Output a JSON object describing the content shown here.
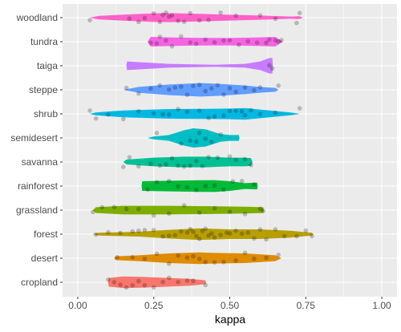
{
  "chart_data": {
    "type": "violin",
    "title": "",
    "xlabel": "kappa",
    "ylabel": "",
    "xlim": [
      -0.05,
      1.05
    ],
    "x_ticks": [
      0.0,
      0.25,
      0.5,
      0.75,
      1.0
    ],
    "x_tick_labels": [
      "0.00",
      "0.25",
      "0.50",
      "0.75",
      "1.00"
    ],
    "grid": true,
    "legend": "none",
    "panel_background": "#EBEBEB",
    "point_color": "rgba(0,0,0,0.22)",
    "categories": [
      "woodland",
      "tundra",
      "taiga",
      "steppe",
      "shrub",
      "semidesert",
      "savanna",
      "rainforest",
      "grassland",
      "forest",
      "desert",
      "cropland"
    ],
    "series": [
      {
        "category": "woodland",
        "color": "#FF61C9",
        "profile": [
          [
            0.04,
            0.0
          ],
          [
            0.07,
            0.18
          ],
          [
            0.15,
            0.32
          ],
          [
            0.25,
            0.45
          ],
          [
            0.3,
            0.47
          ],
          [
            0.4,
            0.4
          ],
          [
            0.5,
            0.3
          ],
          [
            0.6,
            0.22
          ],
          [
            0.7,
            0.12
          ],
          [
            0.73,
            0.15
          ],
          [
            0.74,
            0.0
          ]
        ],
        "points": [
          0.04,
          0.17,
          0.2,
          0.22,
          0.25,
          0.27,
          0.28,
          0.29,
          0.3,
          0.31,
          0.33,
          0.35,
          0.37,
          0.4,
          0.43,
          0.47,
          0.52,
          0.6,
          0.65,
          0.72,
          0.73
        ]
      },
      {
        "category": "tundra",
        "color": "#F564E3",
        "profile": [
          [
            0.23,
            0.0
          ],
          [
            0.24,
            0.5
          ],
          [
            0.3,
            0.45
          ],
          [
            0.4,
            0.4
          ],
          [
            0.5,
            0.38
          ],
          [
            0.6,
            0.45
          ],
          [
            0.65,
            0.5
          ],
          [
            0.675,
            0.0
          ]
        ],
        "points": [
          0.24,
          0.26,
          0.27,
          0.29,
          0.31,
          0.34,
          0.37,
          0.39,
          0.42,
          0.45,
          0.48,
          0.5,
          0.53,
          0.56,
          0.59,
          0.62,
          0.63,
          0.65,
          0.66,
          0.67
        ]
      },
      {
        "category": "taiga",
        "color": "#C77CFF",
        "profile": [
          [
            0.16,
            0.0
          ],
          [
            0.162,
            0.45
          ],
          [
            0.3,
            0.2
          ],
          [
            0.45,
            0.1
          ],
          [
            0.55,
            0.2
          ],
          [
            0.6,
            0.45
          ],
          [
            0.63,
            0.8
          ],
          [
            0.64,
            0.8
          ],
          [
            0.642,
            0.0
          ]
        ],
        "points": [
          0.63,
          0.64
        ]
      },
      {
        "category": "steppe",
        "color": "#619CFF",
        "profile": [
          [
            0.15,
            0.0
          ],
          [
            0.2,
            0.3
          ],
          [
            0.3,
            0.55
          ],
          [
            0.4,
            0.7
          ],
          [
            0.45,
            0.65
          ],
          [
            0.5,
            0.55
          ],
          [
            0.55,
            0.45
          ],
          [
            0.6,
            0.3
          ],
          [
            0.65,
            0.2
          ],
          [
            0.66,
            0.0
          ]
        ],
        "points": [
          0.16,
          0.2,
          0.24,
          0.27,
          0.3,
          0.32,
          0.34,
          0.36,
          0.38,
          0.4,
          0.42,
          0.44,
          0.46,
          0.48,
          0.5,
          0.52,
          0.55,
          0.58,
          0.6,
          0.66
        ]
      },
      {
        "category": "shrub",
        "color": "#00B9E3",
        "profile": [
          [
            0.04,
            0.0
          ],
          [
            0.06,
            0.15
          ],
          [
            0.15,
            0.35
          ],
          [
            0.3,
            0.5
          ],
          [
            0.4,
            0.52
          ],
          [
            0.5,
            0.55
          ],
          [
            0.55,
            0.6
          ],
          [
            0.6,
            0.45
          ],
          [
            0.7,
            0.15
          ],
          [
            0.73,
            0.0
          ]
        ],
        "points": [
          0.04,
          0.06,
          0.1,
          0.15,
          0.2,
          0.25,
          0.28,
          0.3,
          0.33,
          0.36,
          0.4,
          0.43,
          0.45,
          0.48,
          0.5,
          0.52,
          0.54,
          0.55,
          0.57,
          0.6,
          0.65,
          0.73
        ]
      },
      {
        "category": "semidesert",
        "color": "#00BFC4",
        "profile": [
          [
            0.23,
            0.0
          ],
          [
            0.25,
            0.15
          ],
          [
            0.3,
            0.3
          ],
          [
            0.35,
            0.8
          ],
          [
            0.38,
            1.0
          ],
          [
            0.42,
            0.9
          ],
          [
            0.47,
            0.4
          ],
          [
            0.5,
            0.3
          ],
          [
            0.53,
            0.3
          ],
          [
            0.532,
            0.0
          ]
        ],
        "points": [
          0.26,
          0.34,
          0.37,
          0.39,
          0.4,
          0.42,
          0.44,
          0.47
        ]
      },
      {
        "category": "savanna",
        "color": "#00C094",
        "profile": [
          [
            0.15,
            0.0
          ],
          [
            0.16,
            0.25
          ],
          [
            0.25,
            0.45
          ],
          [
            0.35,
            0.55
          ],
          [
            0.42,
            0.55
          ],
          [
            0.5,
            0.45
          ],
          [
            0.55,
            0.45
          ],
          [
            0.57,
            0.4
          ],
          [
            0.575,
            0.0
          ]
        ],
        "points": [
          0.15,
          0.17,
          0.2,
          0.24,
          0.27,
          0.29,
          0.31,
          0.33,
          0.35,
          0.37,
          0.39,
          0.41,
          0.43,
          0.46,
          0.5,
          0.52,
          0.55,
          0.57
        ]
      },
      {
        "category": "rainforest",
        "color": "#00BA38",
        "profile": [
          [
            0.21,
            0.0
          ],
          [
            0.212,
            0.5
          ],
          [
            0.3,
            0.55
          ],
          [
            0.4,
            0.6
          ],
          [
            0.45,
            0.62
          ],
          [
            0.5,
            0.5
          ],
          [
            0.55,
            0.3
          ],
          [
            0.59,
            0.35
          ],
          [
            0.592,
            0.0
          ]
        ],
        "points": [
          0.23,
          0.26,
          0.3,
          0.33,
          0.36,
          0.39,
          0.42,
          0.45,
          0.48,
          0.51,
          0.54,
          0.58
        ]
      },
      {
        "category": "grassland",
        "color": "#7CAE00",
        "profile": [
          [
            0.05,
            0.0
          ],
          [
            0.06,
            0.3
          ],
          [
            0.15,
            0.45
          ],
          [
            0.3,
            0.45
          ],
          [
            0.45,
            0.4
          ],
          [
            0.55,
            0.35
          ],
          [
            0.61,
            0.3
          ],
          [
            0.612,
            0.0
          ]
        ],
        "points": [
          0.05,
          0.08,
          0.12,
          0.16,
          0.2,
          0.25,
          0.3,
          0.35,
          0.4,
          0.45,
          0.5,
          0.55,
          0.6,
          0.61
        ]
      },
      {
        "category": "forest",
        "color": "#B79F00",
        "profile": [
          [
            0.05,
            0.0
          ],
          [
            0.07,
            0.15
          ],
          [
            0.2,
            0.25
          ],
          [
            0.3,
            0.45
          ],
          [
            0.4,
            0.6
          ],
          [
            0.45,
            0.55
          ],
          [
            0.5,
            0.5
          ],
          [
            0.6,
            0.5
          ],
          [
            0.7,
            0.35
          ],
          [
            0.77,
            0.15
          ],
          [
            0.775,
            0.0
          ]
        ],
        "points": [
          0.06,
          0.1,
          0.14,
          0.18,
          0.2,
          0.22,
          0.25,
          0.28,
          0.3,
          0.32,
          0.34,
          0.36,
          0.37,
          0.38,
          0.39,
          0.4,
          0.41,
          0.42,
          0.43,
          0.44,
          0.45,
          0.47,
          0.49,
          0.5,
          0.52,
          0.54,
          0.56,
          0.58,
          0.6,
          0.62,
          0.65,
          0.68,
          0.72,
          0.75,
          0.77
        ]
      },
      {
        "category": "desert",
        "color": "#DE8C00",
        "profile": [
          [
            0.12,
            0.0
          ],
          [
            0.125,
            0.2
          ],
          [
            0.2,
            0.3
          ],
          [
            0.3,
            0.5
          ],
          [
            0.35,
            0.55
          ],
          [
            0.4,
            0.6
          ],
          [
            0.45,
            0.55
          ],
          [
            0.55,
            0.5
          ],
          [
            0.65,
            0.3
          ],
          [
            0.67,
            0.0
          ]
        ],
        "points": [
          0.13,
          0.18,
          0.22,
          0.26,
          0.3,
          0.33,
          0.36,
          0.38,
          0.4,
          0.42,
          0.45,
          0.48,
          0.52,
          0.55,
          0.58,
          0.62,
          0.66
        ]
      },
      {
        "category": "cropland",
        "color": "#F8766D",
        "profile": [
          [
            0.1,
            0.0
          ],
          [
            0.102,
            0.45
          ],
          [
            0.15,
            0.6
          ],
          [
            0.22,
            0.55
          ],
          [
            0.3,
            0.45
          ],
          [
            0.37,
            0.35
          ],
          [
            0.42,
            0.2
          ],
          [
            0.422,
            0.0
          ]
        ],
        "points": [
          0.1,
          0.12,
          0.14,
          0.16,
          0.18,
          0.2,
          0.22,
          0.25,
          0.28,
          0.3,
          0.33,
          0.36,
          0.38,
          0.42
        ]
      }
    ]
  }
}
